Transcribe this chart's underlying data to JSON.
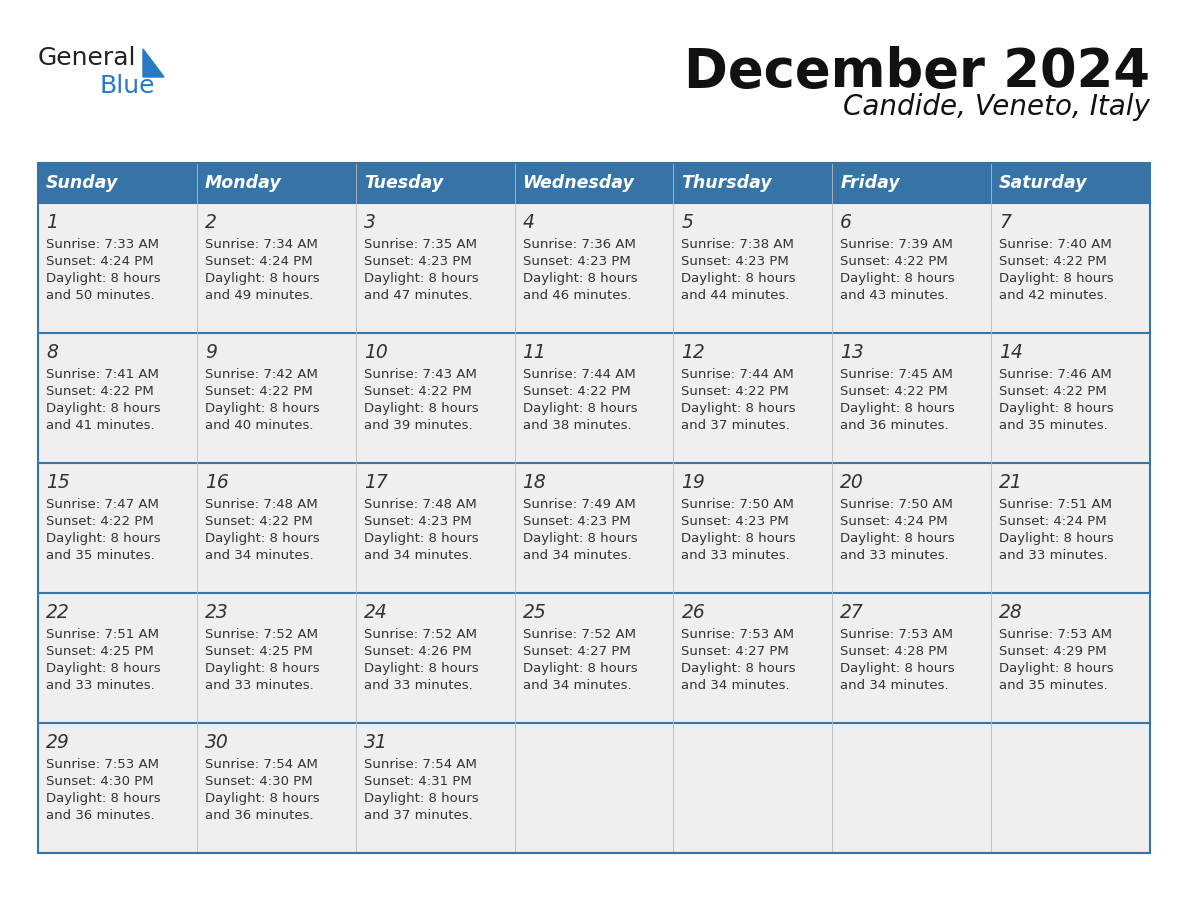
{
  "title": "December 2024",
  "subtitle": "Candide, Veneto, Italy",
  "header_color": "#3674A8",
  "header_text_color": "#FFFFFF",
  "days_of_week": [
    "Sunday",
    "Monday",
    "Tuesday",
    "Wednesday",
    "Thursday",
    "Friday",
    "Saturday"
  ],
  "bg_color": "#FFFFFF",
  "row_alt_color": "#EFEFEF",
  "border_color": "#3674A8",
  "text_color": "#333333",
  "calendar_data": [
    [
      {
        "day": "1",
        "sunrise": "7:33 AM",
        "sunset": "4:24 PM",
        "daylight": "8 hours",
        "daylight2": "and 50 minutes."
      },
      {
        "day": "2",
        "sunrise": "7:34 AM",
        "sunset": "4:24 PM",
        "daylight": "8 hours",
        "daylight2": "and 49 minutes."
      },
      {
        "day": "3",
        "sunrise": "7:35 AM",
        "sunset": "4:23 PM",
        "daylight": "8 hours",
        "daylight2": "and 47 minutes."
      },
      {
        "day": "4",
        "sunrise": "7:36 AM",
        "sunset": "4:23 PM",
        "daylight": "8 hours",
        "daylight2": "and 46 minutes."
      },
      {
        "day": "5",
        "sunrise": "7:38 AM",
        "sunset": "4:23 PM",
        "daylight": "8 hours",
        "daylight2": "and 44 minutes."
      },
      {
        "day": "6",
        "sunrise": "7:39 AM",
        "sunset": "4:22 PM",
        "daylight": "8 hours",
        "daylight2": "and 43 minutes."
      },
      {
        "day": "7",
        "sunrise": "7:40 AM",
        "sunset": "4:22 PM",
        "daylight": "8 hours",
        "daylight2": "and 42 minutes."
      }
    ],
    [
      {
        "day": "8",
        "sunrise": "7:41 AM",
        "sunset": "4:22 PM",
        "daylight": "8 hours",
        "daylight2": "and 41 minutes."
      },
      {
        "day": "9",
        "sunrise": "7:42 AM",
        "sunset": "4:22 PM",
        "daylight": "8 hours",
        "daylight2": "and 40 minutes."
      },
      {
        "day": "10",
        "sunrise": "7:43 AM",
        "sunset": "4:22 PM",
        "daylight": "8 hours",
        "daylight2": "and 39 minutes."
      },
      {
        "day": "11",
        "sunrise": "7:44 AM",
        "sunset": "4:22 PM",
        "daylight": "8 hours",
        "daylight2": "and 38 minutes."
      },
      {
        "day": "12",
        "sunrise": "7:44 AM",
        "sunset": "4:22 PM",
        "daylight": "8 hours",
        "daylight2": "and 37 minutes."
      },
      {
        "day": "13",
        "sunrise": "7:45 AM",
        "sunset": "4:22 PM",
        "daylight": "8 hours",
        "daylight2": "and 36 minutes."
      },
      {
        "day": "14",
        "sunrise": "7:46 AM",
        "sunset": "4:22 PM",
        "daylight": "8 hours",
        "daylight2": "and 35 minutes."
      }
    ],
    [
      {
        "day": "15",
        "sunrise": "7:47 AM",
        "sunset": "4:22 PM",
        "daylight": "8 hours",
        "daylight2": "and 35 minutes."
      },
      {
        "day": "16",
        "sunrise": "7:48 AM",
        "sunset": "4:22 PM",
        "daylight": "8 hours",
        "daylight2": "and 34 minutes."
      },
      {
        "day": "17",
        "sunrise": "7:48 AM",
        "sunset": "4:23 PM",
        "daylight": "8 hours",
        "daylight2": "and 34 minutes."
      },
      {
        "day": "18",
        "sunrise": "7:49 AM",
        "sunset": "4:23 PM",
        "daylight": "8 hours",
        "daylight2": "and 34 minutes."
      },
      {
        "day": "19",
        "sunrise": "7:50 AM",
        "sunset": "4:23 PM",
        "daylight": "8 hours",
        "daylight2": "and 33 minutes."
      },
      {
        "day": "20",
        "sunrise": "7:50 AM",
        "sunset": "4:24 PM",
        "daylight": "8 hours",
        "daylight2": "and 33 minutes."
      },
      {
        "day": "21",
        "sunrise": "7:51 AM",
        "sunset": "4:24 PM",
        "daylight": "8 hours",
        "daylight2": "and 33 minutes."
      }
    ],
    [
      {
        "day": "22",
        "sunrise": "7:51 AM",
        "sunset": "4:25 PM",
        "daylight": "8 hours",
        "daylight2": "and 33 minutes."
      },
      {
        "day": "23",
        "sunrise": "7:52 AM",
        "sunset": "4:25 PM",
        "daylight": "8 hours",
        "daylight2": "and 33 minutes."
      },
      {
        "day": "24",
        "sunrise": "7:52 AM",
        "sunset": "4:26 PM",
        "daylight": "8 hours",
        "daylight2": "and 33 minutes."
      },
      {
        "day": "25",
        "sunrise": "7:52 AM",
        "sunset": "4:27 PM",
        "daylight": "8 hours",
        "daylight2": "and 34 minutes."
      },
      {
        "day": "26",
        "sunrise": "7:53 AM",
        "sunset": "4:27 PM",
        "daylight": "8 hours",
        "daylight2": "and 34 minutes."
      },
      {
        "day": "27",
        "sunrise": "7:53 AM",
        "sunset": "4:28 PM",
        "daylight": "8 hours",
        "daylight2": "and 34 minutes."
      },
      {
        "day": "28",
        "sunrise": "7:53 AM",
        "sunset": "4:29 PM",
        "daylight": "8 hours",
        "daylight2": "and 35 minutes."
      }
    ],
    [
      {
        "day": "29",
        "sunrise": "7:53 AM",
        "sunset": "4:30 PM",
        "daylight": "8 hours",
        "daylight2": "and 36 minutes."
      },
      {
        "day": "30",
        "sunrise": "7:54 AM",
        "sunset": "4:30 PM",
        "daylight": "8 hours",
        "daylight2": "and 36 minutes."
      },
      {
        "day": "31",
        "sunrise": "7:54 AM",
        "sunset": "4:31 PM",
        "daylight": "8 hours",
        "daylight2": "and 37 minutes."
      },
      null,
      null,
      null,
      null
    ]
  ],
  "logo_color1": "#222222",
  "logo_color2": "#2879C3",
  "logo_triangle_color": "#2879C3"
}
